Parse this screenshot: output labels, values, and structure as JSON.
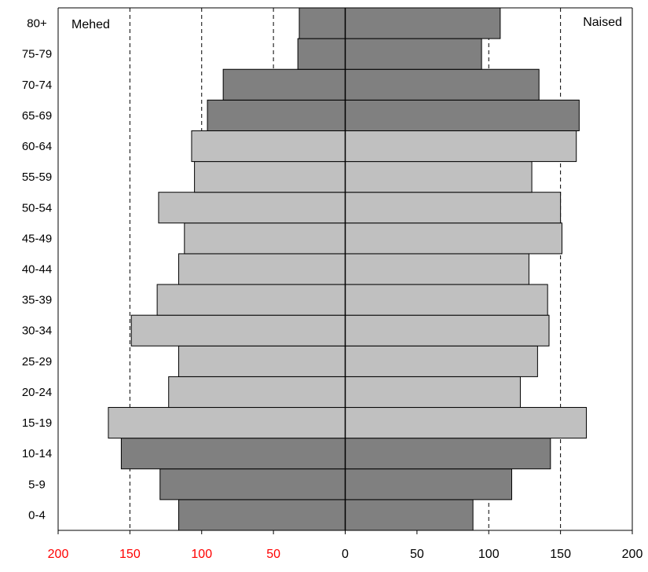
{
  "chart_data": {
    "type": "bar",
    "orientation": "horizontal",
    "layout": "population-pyramid",
    "categories": [
      "0-4",
      "5-9",
      "10-14",
      "15-19",
      "20-24",
      "25-29",
      "30-34",
      "35-39",
      "40-44",
      "45-49",
      "50-54",
      "55-59",
      "60-64",
      "65-69",
      "70-74",
      "75-79",
      "80+"
    ],
    "series": [
      {
        "name": "Mehed",
        "side": "left",
        "values": [
          116,
          129,
          156,
          165,
          123,
          116,
          149,
          131,
          116,
          112,
          130,
          105,
          107,
          96,
          85,
          33,
          32
        ]
      },
      {
        "name": "Naised",
        "side": "right",
        "values": [
          89,
          116,
          143,
          168,
          122,
          134,
          142,
          141,
          128,
          151,
          150,
          130,
          161,
          163,
          135,
          95,
          108
        ]
      }
    ],
    "highlight_categories": [
      "0-4",
      "5-9",
      "10-14",
      "65-69",
      "70-74",
      "75-79",
      "80+"
    ],
    "x_ticks": [
      {
        "label": "200",
        "value": -200,
        "color": "#ff0000"
      },
      {
        "label": "150",
        "value": -150,
        "color": "#ff0000"
      },
      {
        "label": "100",
        "value": -100,
        "color": "#ff0000"
      },
      {
        "label": "50",
        "value": -50,
        "color": "#ff0000"
      },
      {
        "label": "0",
        "value": 0,
        "color": "#000000"
      },
      {
        "label": "50",
        "value": 50,
        "color": "#000000"
      },
      {
        "label": "100",
        "value": 100,
        "color": "#000000"
      },
      {
        "label": "150",
        "value": 150,
        "color": "#000000"
      },
      {
        "label": "200",
        "value": 200,
        "color": "#000000"
      }
    ],
    "gridlines": [
      -150,
      -100,
      -50,
      100,
      150
    ],
    "xlim": [
      -200,
      200
    ],
    "colors": {
      "highlight": "#808080",
      "normal": "#c0c0c0",
      "edge": "#000000",
      "grid": "#000000"
    },
    "legend": {
      "left": "Mehed",
      "right": "Naised"
    }
  }
}
